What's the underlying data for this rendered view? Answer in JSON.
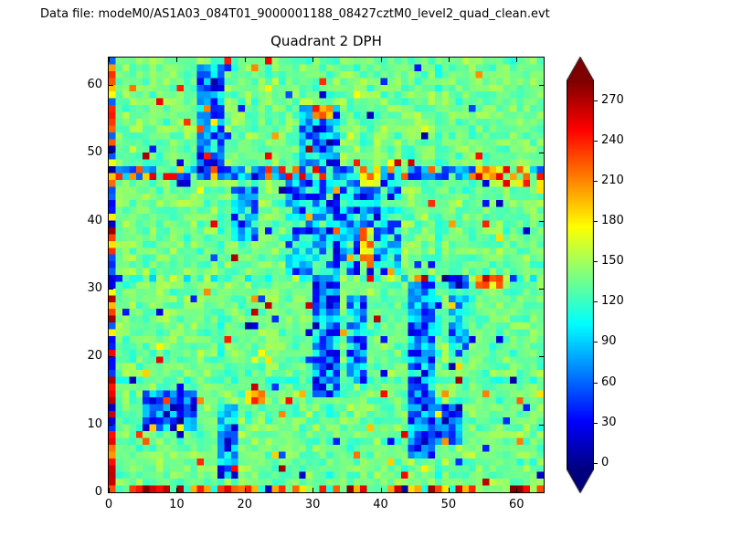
{
  "header": {
    "datafile_label": "Data file: modeM0/AS1A03_084T01_9000001188_08427cztM0_level2_quad_clean.evt"
  },
  "chart_data": {
    "type": "heatmap",
    "title": "Quadrant 2 DPH",
    "grid_size": 64,
    "xlim": [
      0,
      64
    ],
    "ylim": [
      0,
      64
    ],
    "x_ticks": [
      0,
      10,
      20,
      30,
      40,
      50,
      60
    ],
    "y_ticks": [
      0,
      10,
      20,
      30,
      40,
      50,
      60
    ],
    "colormap": "jet",
    "vmin": -5,
    "vmax": 285,
    "colorbar_ticks": [
      0,
      30,
      60,
      90,
      120,
      150,
      180,
      210,
      240,
      270
    ],
    "colorbar_extend": "both",
    "seed": 1337,
    "base": {
      "mean": 136,
      "std": 14
    },
    "speckle": {
      "high_fraction": 0.025,
      "high_range": [
        165,
        275
      ],
      "low_fraction": 0.02,
      "low_range": [
        0,
        55
      ]
    },
    "features": [
      {
        "x": 16,
        "y": 0,
        "w": 1,
        "h": 64,
        "min": 105,
        "max": 145
      },
      {
        "x": 32,
        "y": 0,
        "w": 1,
        "h": 64,
        "min": 105,
        "max": 145
      },
      {
        "x": 48,
        "y": 0,
        "w": 1,
        "h": 64,
        "min": 105,
        "max": 145
      },
      {
        "x": 0,
        "y": 16,
        "w": 64,
        "h": 1,
        "min": 105,
        "max": 145
      },
      {
        "x": 0,
        "y": 31,
        "w": 64,
        "h": 1,
        "min": 85,
        "max": 165
      },
      {
        "x": 1,
        "y": 46,
        "w": 63,
        "h": 2,
        "modes": [
          [
            35,
            105
          ],
          [
            35,
            105
          ],
          [
            110,
            150
          ],
          [
            185,
            260
          ]
        ]
      },
      {
        "x": 26,
        "y": 32,
        "w": 17,
        "h": 14,
        "modes": [
          [
            15,
            70
          ],
          [
            60,
            120
          ],
          [
            100,
            140
          ]
        ]
      },
      {
        "x": 18,
        "y": 37,
        "w": 4,
        "h": 8,
        "modes": [
          [
            25,
            80
          ],
          [
            80,
            130
          ]
        ]
      },
      {
        "x": 13,
        "y": 48,
        "w": 4,
        "h": 15,
        "modes": [
          [
            15,
            75
          ],
          [
            60,
            120
          ]
        ]
      },
      {
        "x": 28,
        "y": 48,
        "w": 6,
        "h": 9,
        "modes": [
          [
            20,
            80
          ],
          [
            70,
            125
          ]
        ]
      },
      {
        "x": 30,
        "y": 14,
        "w": 4,
        "h": 18,
        "modes": [
          [
            15,
            75
          ],
          [
            70,
            120
          ]
        ]
      },
      {
        "x": 35,
        "y": 16,
        "w": 3,
        "h": 13,
        "modes": [
          [
            25,
            85
          ],
          [
            80,
            130
          ]
        ]
      },
      {
        "x": 44,
        "y": 5,
        "w": 4,
        "h": 26,
        "modes": [
          [
            15,
            75
          ],
          [
            70,
            120
          ]
        ]
      },
      {
        "x": 50,
        "y": 20,
        "w": 3,
        "h": 12,
        "modes": [
          [
            25,
            90
          ],
          [
            90,
            130
          ]
        ]
      },
      {
        "x": 5,
        "y": 9,
        "w": 8,
        "h": 6,
        "modes": [
          [
            0,
            60
          ],
          [
            50,
            110
          ]
        ]
      },
      {
        "x": 16,
        "y": 2,
        "w": 3,
        "h": 11,
        "modes": [
          [
            10,
            70
          ],
          [
            70,
            120
          ]
        ]
      },
      {
        "x": 46,
        "y": 7,
        "w": 6,
        "h": 6,
        "modes": [
          [
            0,
            55
          ],
          [
            50,
            100
          ]
        ]
      },
      {
        "x": 56,
        "y": 45,
        "w": 6,
        "h": 3,
        "min": 130,
        "max": 255
      },
      {
        "x": 20,
        "y": 13,
        "w": 3,
        "h": 2,
        "min": 170,
        "max": 250
      },
      {
        "x": 30,
        "y": 55,
        "w": 3,
        "h": 2,
        "min": 160,
        "max": 245
      },
      {
        "x": 37,
        "y": 33,
        "w": 2,
        "h": 6,
        "min": 140,
        "max": 230
      },
      {
        "x": 54,
        "y": 30,
        "w": 4,
        "h": 2,
        "min": 145,
        "max": 235
      },
      {
        "x": 37,
        "y": 45,
        "w": 3,
        "h": 2,
        "min": 150,
        "max": 240
      },
      {
        "x": 63,
        "y": 44,
        "w": 1,
        "h": 3,
        "min": 170,
        "max": 250
      },
      {
        "x": 0,
        "y": 0,
        "w": 64,
        "h": 1,
        "modes": [
          [
            110,
            150
          ],
          [
            180,
            290
          ],
          [
            180,
            290
          ]
        ]
      },
      {
        "x": 0,
        "y": 1,
        "w": 1,
        "h": 63,
        "modes": [
          [
            0,
            70
          ],
          [
            170,
            280
          ]
        ]
      }
    ]
  }
}
